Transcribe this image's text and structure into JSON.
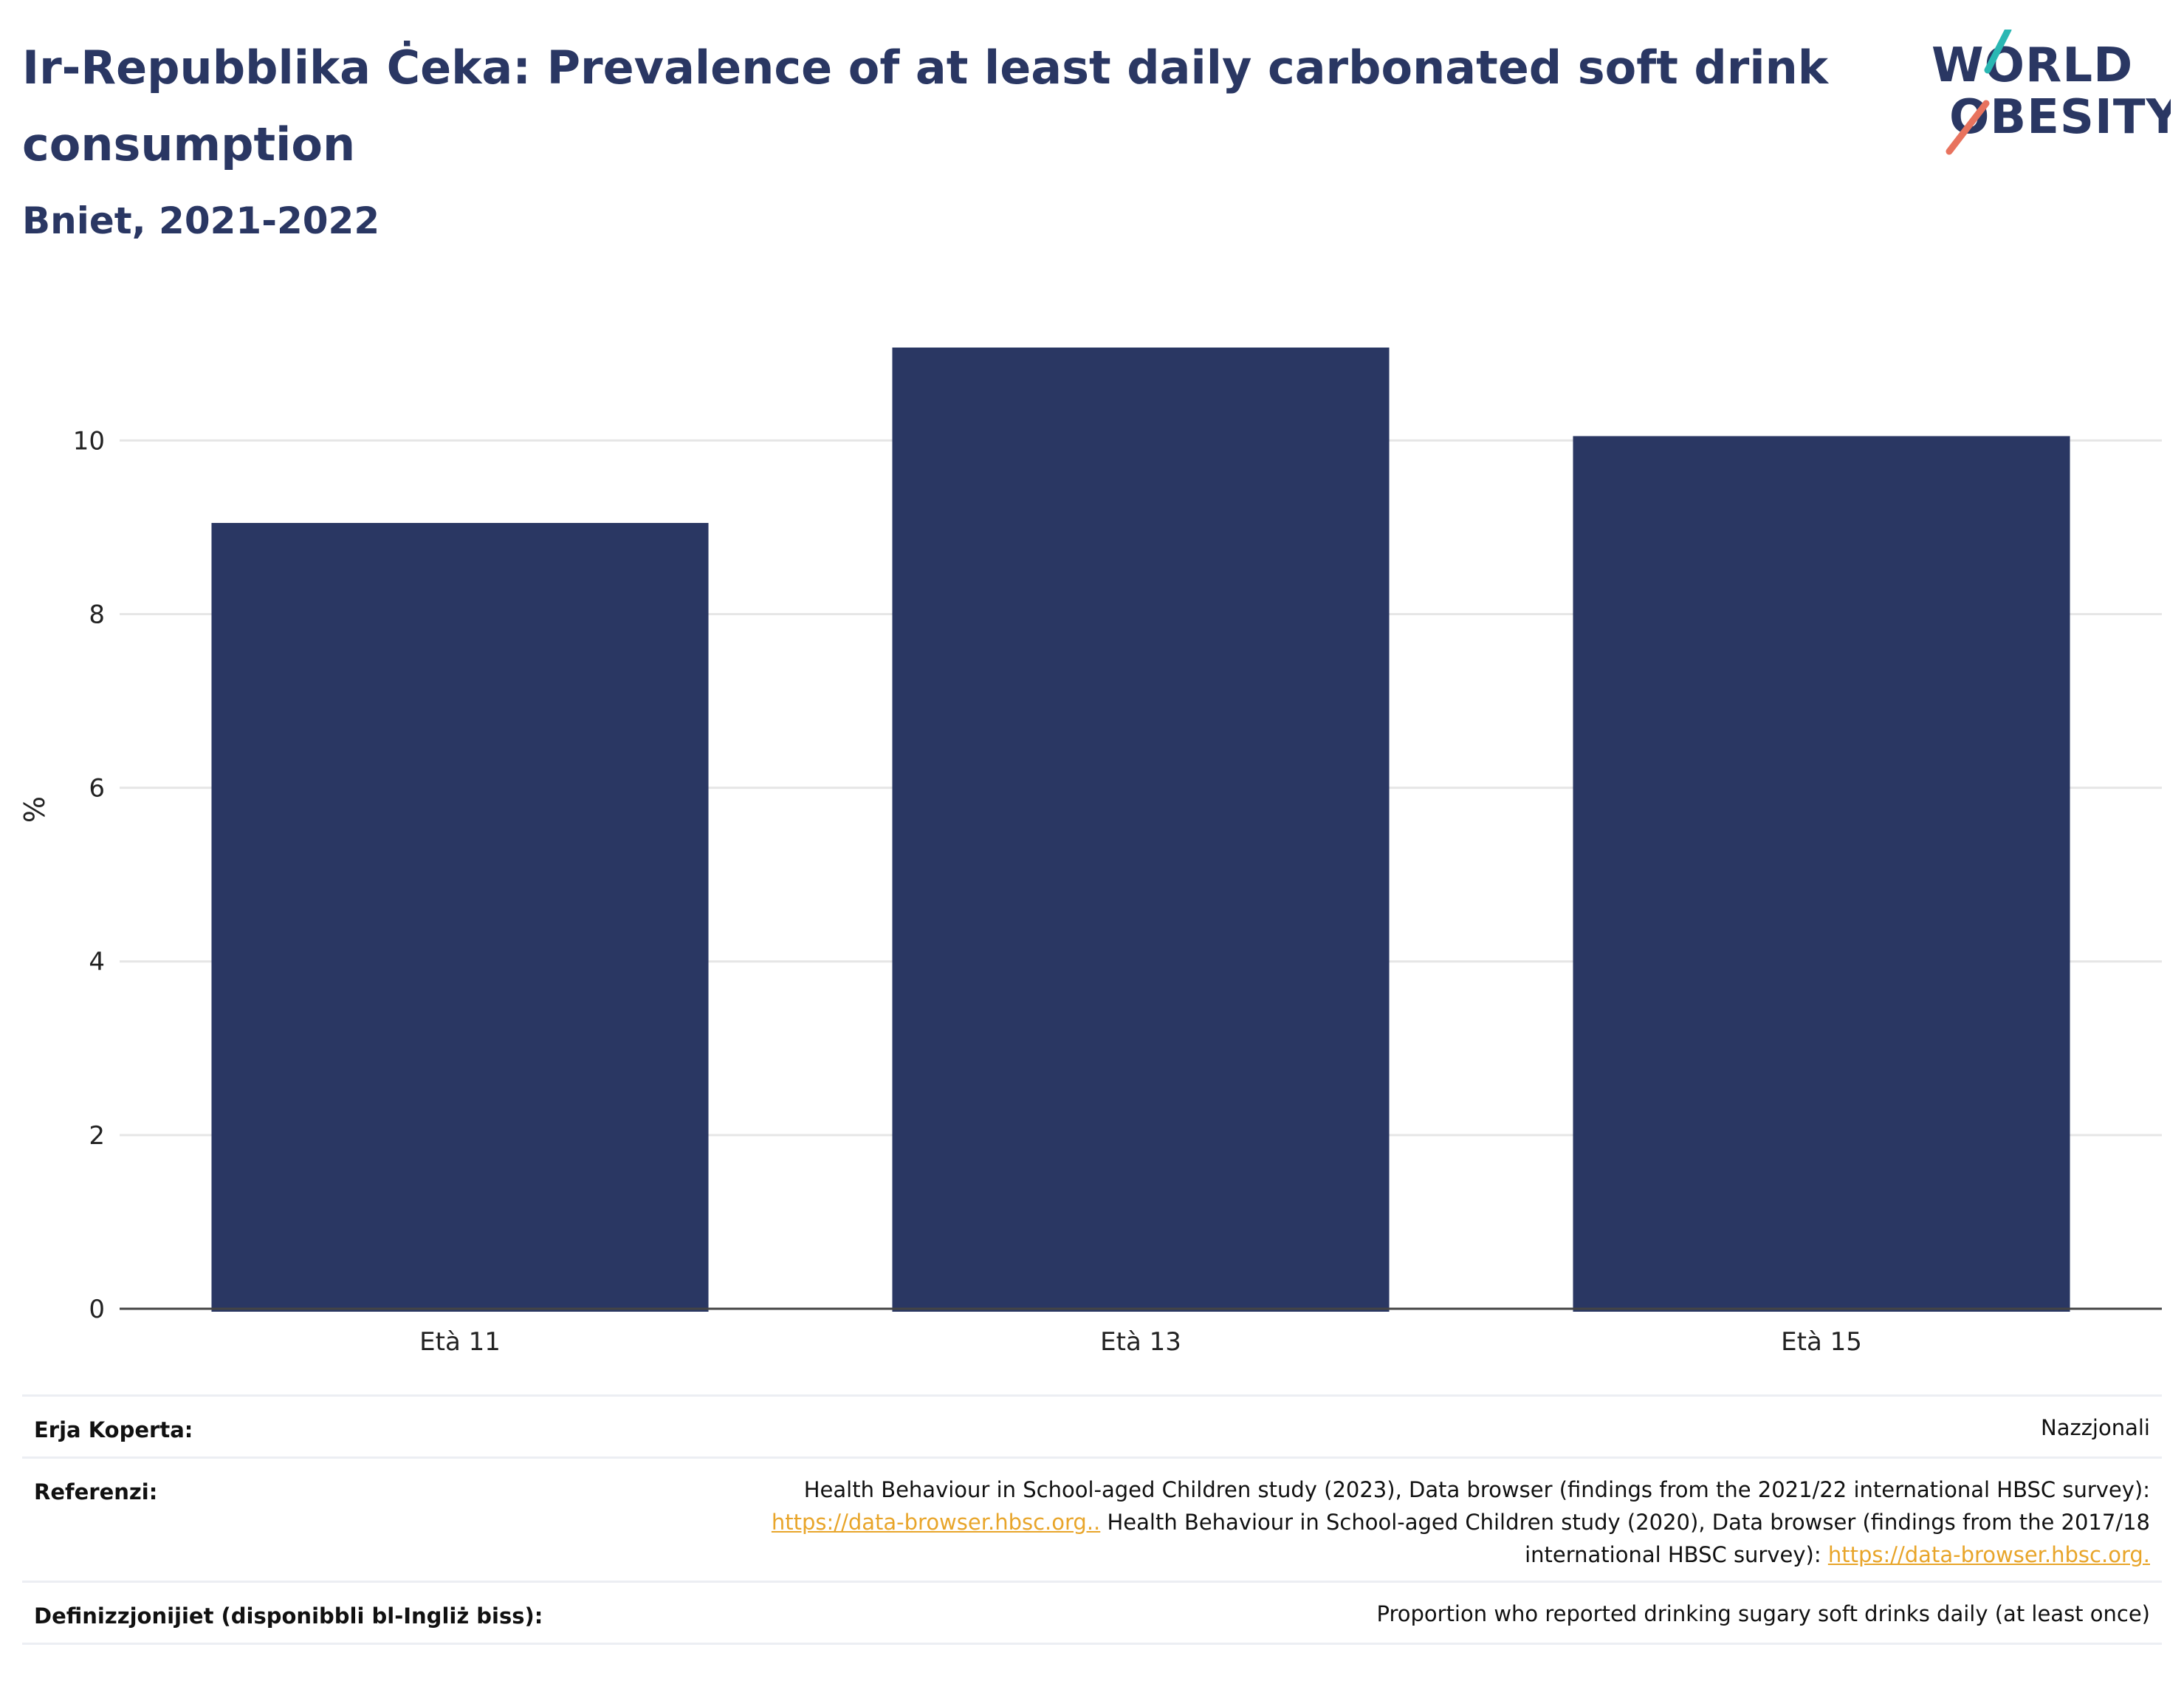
{
  "header": {
    "title": "Ir-Repubblika Ċeka: Prevalence of at least daily carbonated soft drink consumption",
    "subtitle": "Bniet, 2021-2022"
  },
  "logo": {
    "line1": "WORLD",
    "line2": "OBESITY",
    "icon": "world-obesity-logo"
  },
  "colors": {
    "bar": "#2a3763",
    "title": "#2a3763",
    "link": "#e8a52a",
    "grid": "#e6e6e6"
  },
  "chart_data": {
    "type": "bar",
    "categories": [
      "Età 11",
      "Età 13",
      "Età 15"
    ],
    "values": [
      9.05,
      11.07,
      10.05
    ],
    "ylabel": "%",
    "ylim": [
      0,
      11.5
    ],
    "yticks": [
      0,
      2,
      4,
      6,
      8,
      10
    ],
    "grid": true
  },
  "meta": {
    "coverage_label": "Erja Koperta:",
    "coverage_value": "Nazzjonali",
    "references_label": "Referenzi:",
    "references_line1": "Health Behaviour in School-aged Children study (2023), Data browser (findings from the 2021/22 international HBSC survey):",
    "references_link1": "https://data-browser.hbsc.org..",
    "references_line2_rest": " Health Behaviour in School-aged Children study (2020), Data browser (findings from the 2017/18",
    "references_line3": "international HBSC survey): ",
    "references_link2": "https://data-browser.hbsc.org.",
    "definitions_label": "Definizzjonijiet (disponibbli bl-Ingliż biss):",
    "definitions_value": "Proportion who reported drinking sugary soft drinks daily (at least once)"
  }
}
